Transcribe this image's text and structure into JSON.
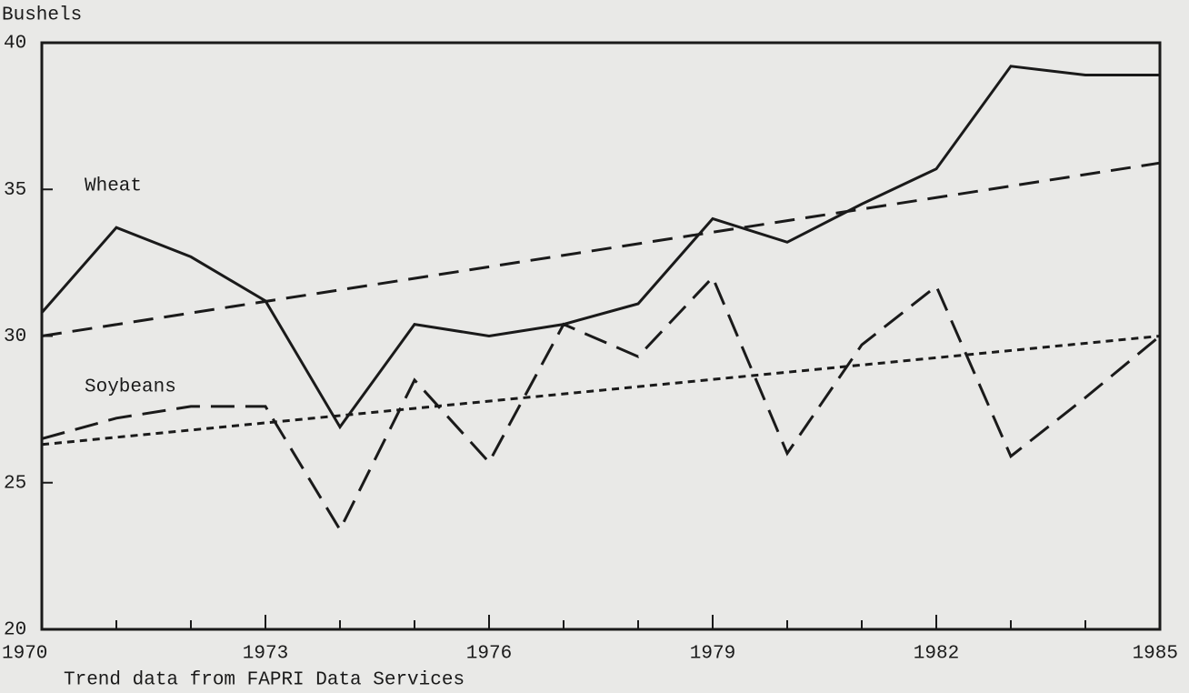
{
  "chart_data": {
    "type": "line",
    "y_label": "Bushels",
    "note": "Trend data from FAPRI Data Services",
    "x": [
      1970,
      1971,
      1972,
      1973,
      1974,
      1975,
      1976,
      1977,
      1978,
      1979,
      1980,
      1981,
      1982,
      1983,
      1984,
      1985
    ],
    "xlim": [
      1970,
      1985
    ],
    "xticks": [
      1970,
      1973,
      1976,
      1979,
      1982,
      1985
    ],
    "ylim": [
      20,
      40
    ],
    "yticks": [
      20,
      25,
      30,
      35,
      40
    ],
    "series": [
      {
        "name": "Wheat",
        "color": "#1a1a1a",
        "dash": "none",
        "values": [
          30.8,
          33.7,
          32.7,
          31.2,
          26.9,
          30.4,
          30.0,
          30.4,
          31.1,
          34.0,
          33.2,
          34.5,
          35.7,
          39.2,
          38.9,
          38.9
        ]
      },
      {
        "name": "Soybeans",
        "color": "#1a1a1a",
        "dash": "26 12",
        "values": [
          26.5,
          27.2,
          27.6,
          27.6,
          23.4,
          28.5,
          25.7,
          30.4,
          29.3,
          32.0,
          26.0,
          29.7,
          31.7,
          25.9,
          27.9,
          30.0
        ]
      }
    ],
    "trend_lines": [
      {
        "x": [
          1970,
          1985
        ],
        "values": [
          30.0,
          35.9
        ],
        "color": "#1a1a1a",
        "dash": "22 12"
      },
      {
        "x": [
          1970,
          1985
        ],
        "values": [
          26.3,
          30.0
        ],
        "color": "#1a1a1a",
        "dash": "8 6"
      }
    ]
  }
}
